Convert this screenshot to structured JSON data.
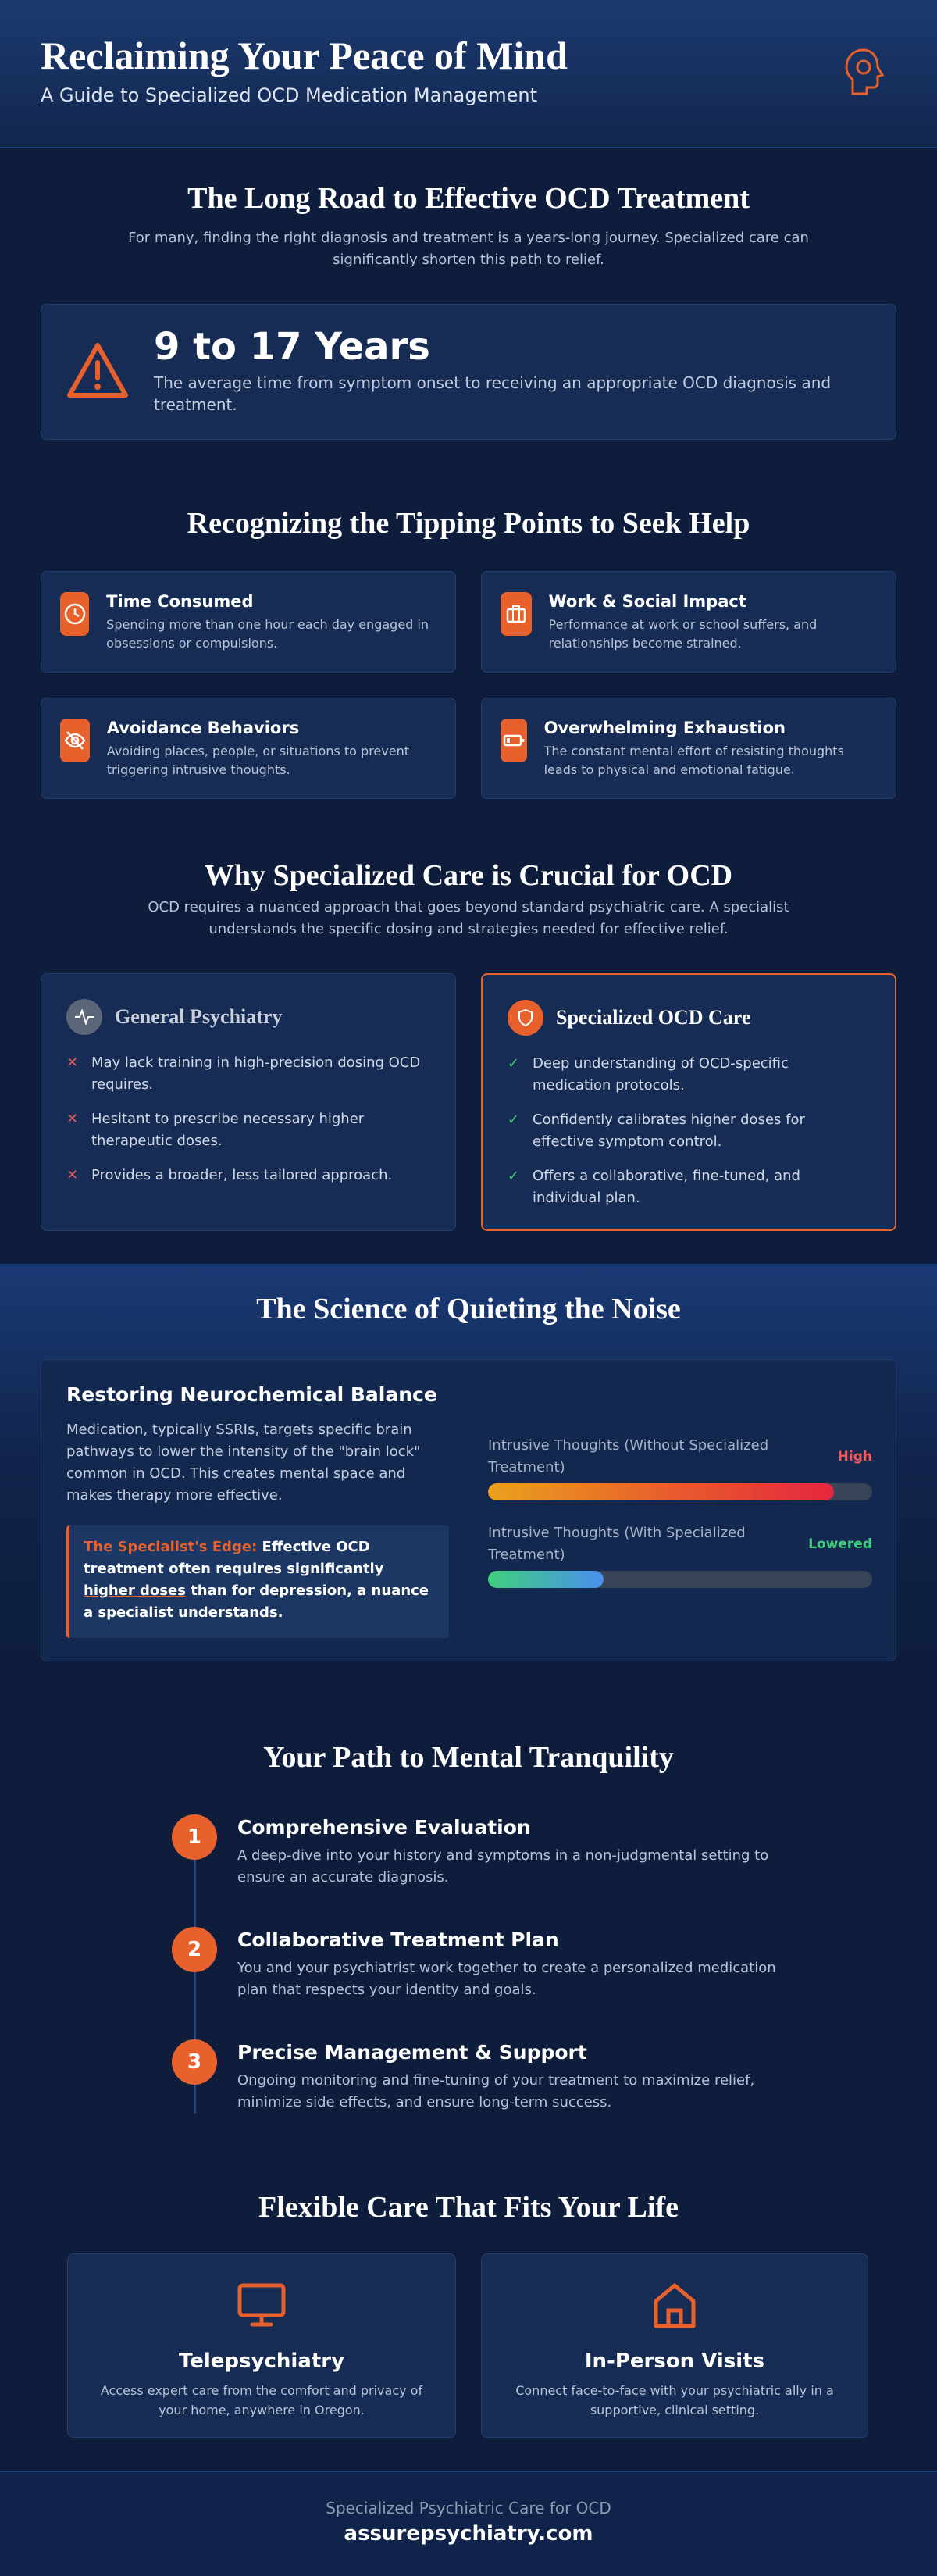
{
  "header": {
    "title": "Reclaiming Your Peace of Mind",
    "subtitle": "A Guide to Specialized OCD Medication Management"
  },
  "intro": {
    "title": "The Long Road to Effective OCD Treatment",
    "text": "For many, finding the right diagnosis and treatment is a years-long journey. Specialized care can significantly shorten this path to relief.",
    "stat": {
      "value": "9 to 17 Years",
      "text": "The average time from symptom onset to receiving an appropriate OCD diagnosis and treatment."
    }
  },
  "tipping": {
    "title": "Recognizing the Tipping Points to Seek Help",
    "cards": [
      {
        "title": "Time Consumed",
        "text": "Spending more than one hour each day engaged in obsessions or compulsions."
      },
      {
        "title": "Work & Social Impact",
        "text": "Performance at work or school suffers, and relationships become strained."
      },
      {
        "title": "Avoidance Behaviors",
        "text": "Avoiding places, people, or situations to prevent triggering intrusive thoughts."
      },
      {
        "title": "Overwhelming Exhaustion",
        "text": "The constant mental effort of resisting thoughts leads to physical and emotional fatigue."
      }
    ]
  },
  "specialized": {
    "title": "Why Specialized Care is Crucial for OCD",
    "text": "OCD requires a nuanced approach that goes beyond standard psychiatric care. A specialist understands the specific dosing and strategies needed for effective relief.",
    "general": {
      "title": "General Psychiatry",
      "items": [
        "May lack training in high-precision dosing OCD requires.",
        "Hesitant to prescribe necessary higher therapeutic doses.",
        "Provides a broader, less tailored approach."
      ]
    },
    "specialist": {
      "title": "Specialized OCD Care",
      "items": [
        "Deep understanding of OCD-specific medication protocols.",
        "Confidently calibrates higher doses for effective symptom control.",
        "Offers a collaborative, fine-tuned, and individual plan."
      ]
    }
  },
  "science": {
    "title": "The Science of Quieting the Noise",
    "box": {
      "title": "Restoring Neurochemical Balance",
      "text": "Medication, typically SSRIs, targets specific brain pathways to lower the intensity of the \"brain lock\" common in OCD. This creates mental space and makes therapy more effective.",
      "edge_label": "The Specialist's Edge:",
      "edge_text_1": "Effective OCD treatment often requires significantly",
      "edge_underline": "higher doses",
      "edge_text_2": "than for depression, a nuance a specialist understands."
    },
    "bars": [
      {
        "label": "Intrusive Thoughts (Without Specialized Treatment)",
        "level": "High",
        "fill": 90
      },
      {
        "label": "Intrusive Thoughts (With Specialized Treatment)",
        "level": "Lowered",
        "fill": 30
      }
    ]
  },
  "path": {
    "title": "Your Path to Mental Tranquility",
    "steps": [
      {
        "number": "1",
        "title": "Comprehensive Evaluation",
        "text": "A deep-dive into your history and symptoms in a non-judgmental setting to ensure an accurate diagnosis."
      },
      {
        "number": "2",
        "title": "Collaborative Treatment Plan",
        "text": "You and your psychiatrist work together to create a personalized medication plan that respects your identity and goals."
      },
      {
        "number": "3",
        "title": "Precise Management & Support",
        "text": "Ongoing monitoring and fine-tuning of your treatment to maximize relief, minimize side effects, and ensure long-term success."
      }
    ]
  },
  "care": {
    "title": "Flexible Care That Fits Your Life",
    "cards": [
      {
        "title": "Telepsychiatry",
        "text": "Access expert care from the comfort and privacy of your home, anywhere in Oregon."
      },
      {
        "title": "In-Person Visits",
        "text": "Connect face-to-face with your psychiatric ally in a supportive, clinical setting."
      }
    ]
  },
  "footer": {
    "tagline": "Specialized Psychiatric Care for OCD",
    "site": "assurepsychiatry.com"
  }
}
